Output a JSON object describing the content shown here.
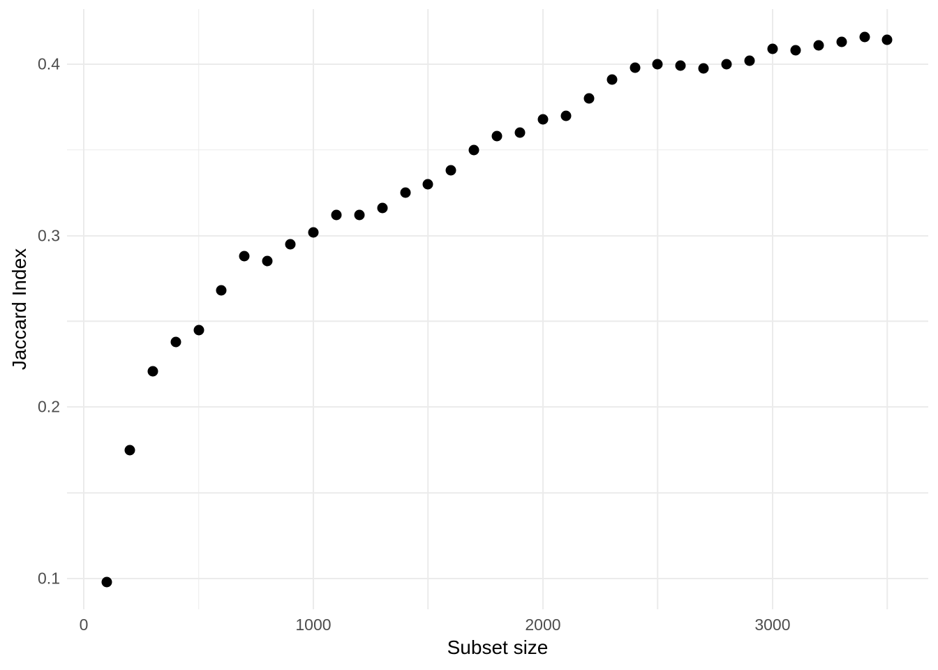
{
  "figure": {
    "background": "#FFFFFF"
  },
  "chart_data": {
    "type": "scatter",
    "title": "",
    "xlabel": "Subset size",
    "ylabel": "Jaccard Index",
    "x": [
      100,
      200,
      300,
      400,
      500,
      600,
      700,
      800,
      900,
      1000,
      1100,
      1200,
      1300,
      1400,
      1500,
      1600,
      1700,
      1800,
      1900,
      2000,
      2100,
      2200,
      2300,
      2400,
      2500,
      2600,
      2700,
      2800,
      2900,
      3000,
      3100,
      3200,
      3300,
      3400,
      3500
    ],
    "y": [
      0.098,
      0.175,
      0.221,
      0.238,
      0.245,
      0.268,
      0.288,
      0.285,
      0.295,
      0.302,
      0.312,
      0.312,
      0.316,
      0.325,
      0.33,
      0.338,
      0.35,
      0.358,
      0.36,
      0.368,
      0.37,
      0.38,
      0.391,
      0.398,
      0.4,
      0.399,
      0.3975,
      0.4,
      0.402,
      0.409,
      0.408,
      0.411,
      0.413,
      0.416,
      0.414
    ],
    "xlim": [
      -73,
      3678
    ],
    "ylim": [
      0.0821,
      0.4321
    ],
    "x_axis": {
      "major_ticks": [
        0,
        1000,
        2000,
        3000
      ],
      "major_labels": [
        "0",
        "1000",
        "2000",
        "3000"
      ],
      "minor_ticks": [
        500,
        1500,
        2500,
        3500
      ]
    },
    "y_axis": {
      "major_ticks": [
        0.1,
        0.2,
        0.3,
        0.4
      ],
      "major_labels": [
        "0.1",
        "0.2",
        "0.3",
        "0.4"
      ],
      "minor_ticks": [
        0.15,
        0.25,
        0.35
      ]
    },
    "grid": true,
    "legend": false,
    "point_color": "#000000",
    "grid_color": "#EBEBEB",
    "tick_label_color": "#4D4D4D",
    "axis_title_color": "#000000"
  }
}
